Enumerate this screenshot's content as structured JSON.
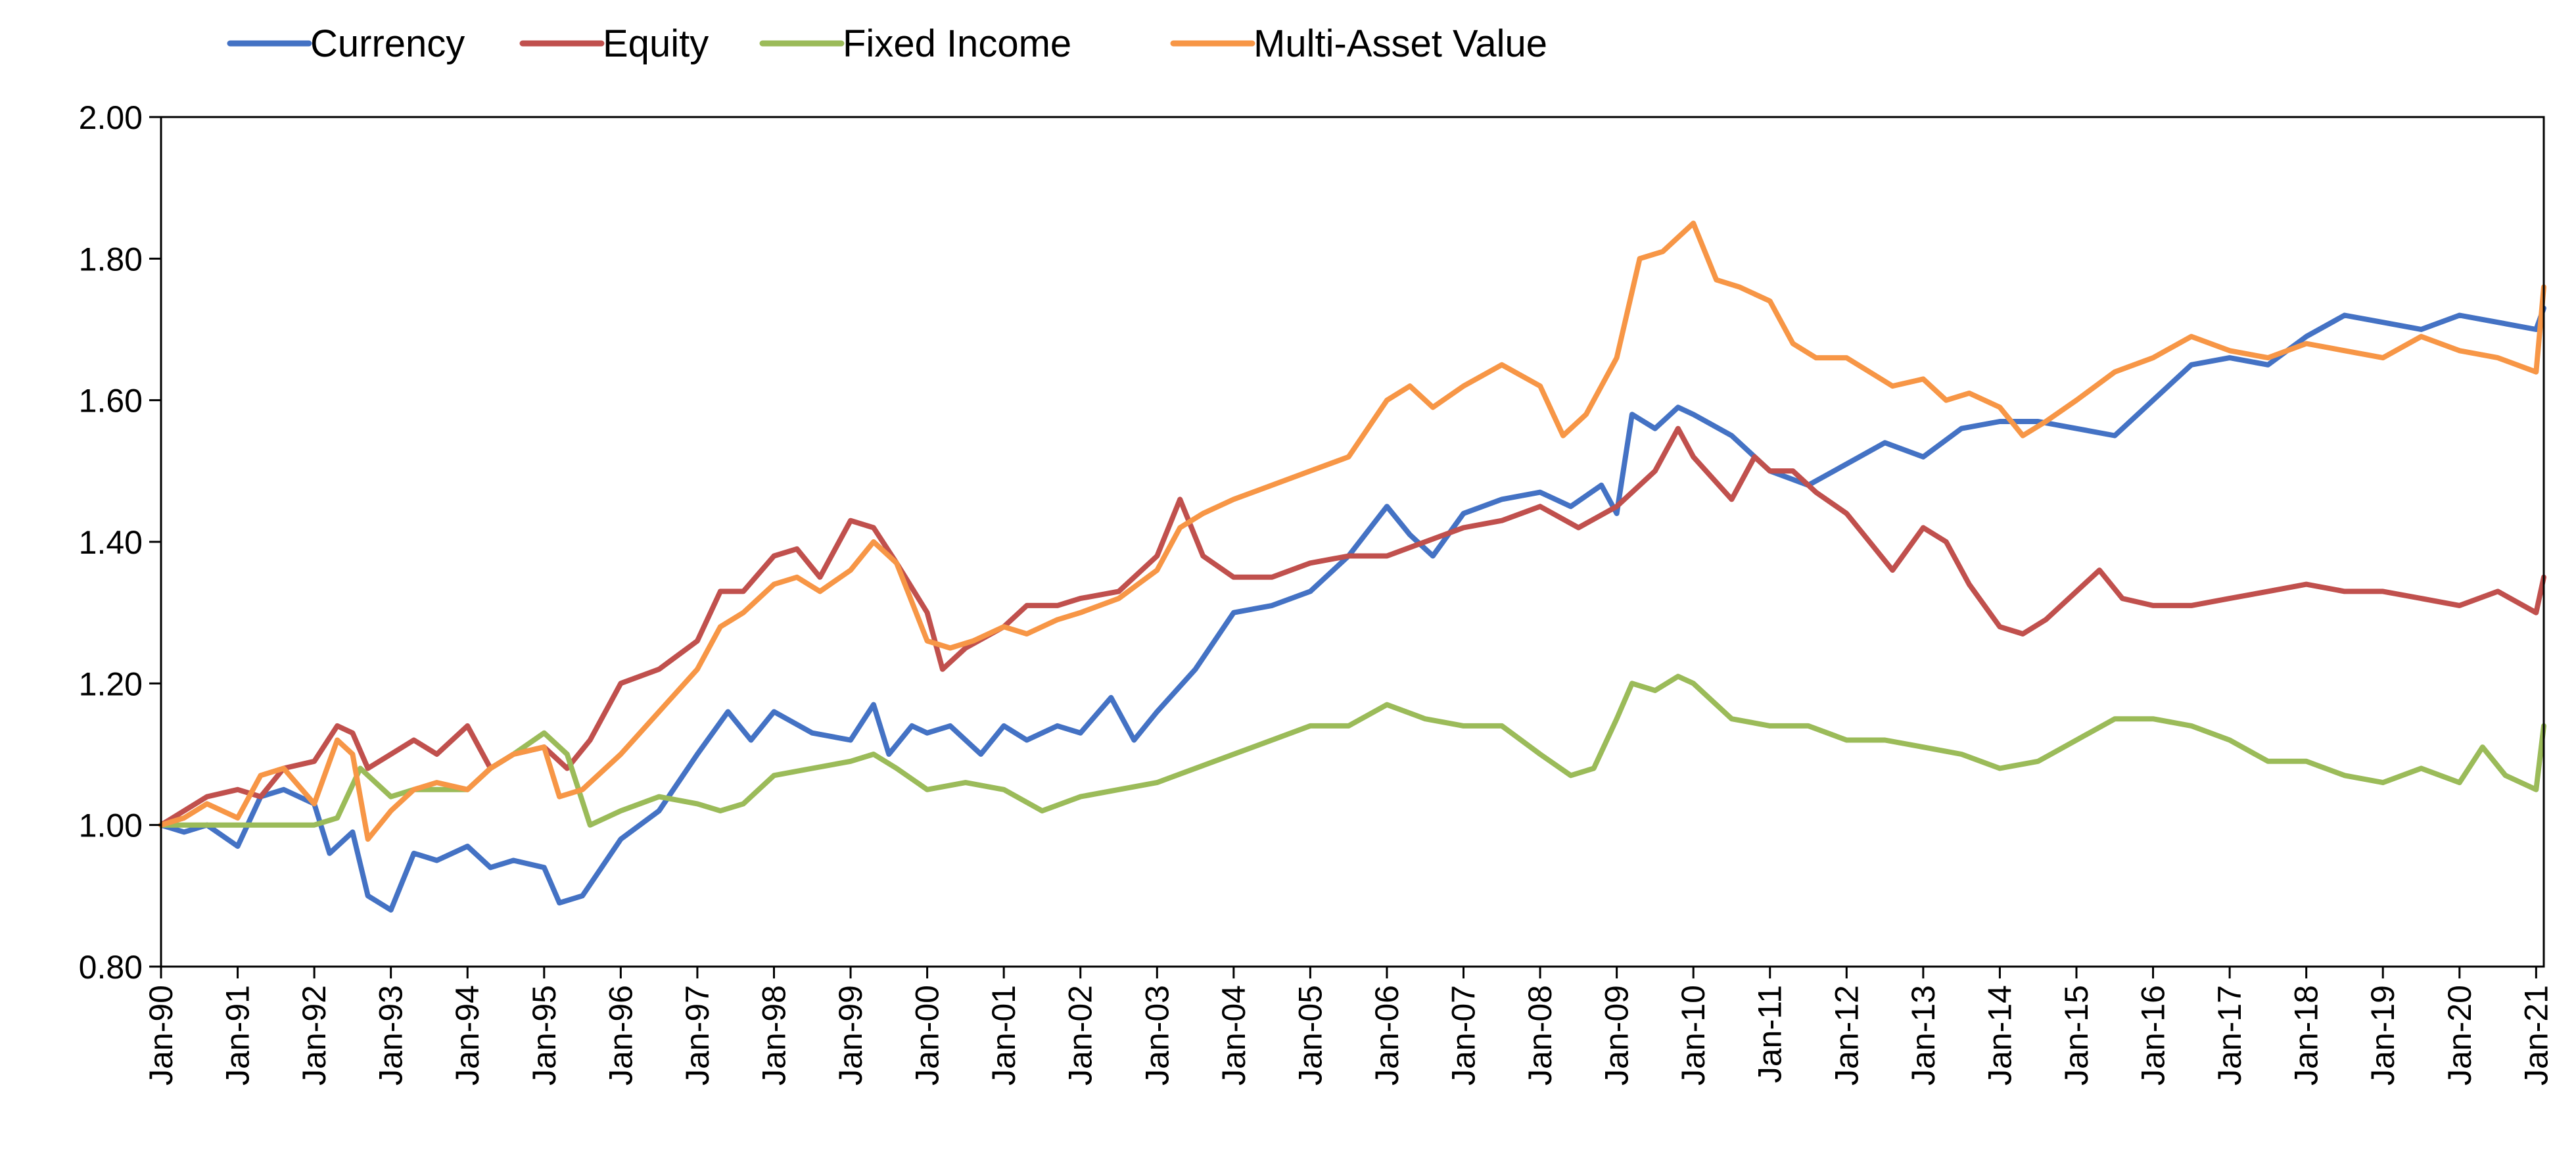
{
  "chart_data": {
    "type": "line",
    "title": "",
    "xlabel": "",
    "ylabel": "",
    "ylim": [
      0.8,
      2.0
    ],
    "yticks": [
      "0.80",
      "1.00",
      "1.20",
      "1.40",
      "1.60",
      "1.80",
      "2.00"
    ],
    "xlim": [
      1990.0,
      2021.1
    ],
    "xticks": [
      "Jan-90",
      "Jan-91",
      "Jan-92",
      "Jan-93",
      "Jan-94",
      "Jan-95",
      "Jan-96",
      "Jan-97",
      "Jan-98",
      "Jan-99",
      "Jan-00",
      "Jan-01",
      "Jan-02",
      "Jan-03",
      "Jan-04",
      "Jan-05",
      "Jan-06",
      "Jan-07",
      "Jan-08",
      "Jan-09",
      "Jan-10",
      "Jan-11",
      "Jan-12",
      "Jan-13",
      "Jan-14",
      "Jan-15",
      "Jan-16",
      "Jan-17",
      "Jan-18",
      "Jan-19",
      "Jan-20",
      "Jan-21"
    ],
    "legend_position": "top-left, above plot",
    "series": [
      {
        "name": "Currency",
        "color": "#4472C4",
        "x": [
          1990.0,
          1990.3,
          1990.6,
          1991.0,
          1991.3,
          1991.6,
          1992.0,
          1992.2,
          1992.5,
          1992.7,
          1993.0,
          1993.3,
          1993.6,
          1994.0,
          1994.3,
          1994.6,
          1995.0,
          1995.2,
          1995.5,
          1996.0,
          1996.5,
          1997.0,
          1997.4,
          1997.7,
          1998.0,
          1998.5,
          1999.0,
          1999.3,
          1999.5,
          1999.8,
          2000.0,
          2000.3,
          2000.7,
          2001.0,
          2001.3,
          2001.7,
          2002.0,
          2002.4,
          2002.7,
          2003.0,
          2003.5,
          2004.0,
          2004.5,
          2005.0,
          2005.5,
          2006.0,
          2006.3,
          2006.6,
          2007.0,
          2007.5,
          2008.0,
          2008.4,
          2008.8,
          2009.0,
          2009.2,
          2009.5,
          2009.8,
          2010.0,
          2010.5,
          2011.0,
          2011.5,
          2012.0,
          2012.5,
          2013.0,
          2013.5,
          2014.0,
          2014.5,
          2015.0,
          2015.5,
          2016.0,
          2016.5,
          2017.0,
          2017.5,
          2018.0,
          2018.5,
          2019.0,
          2019.5,
          2020.0,
          2020.5,
          2021.0,
          2021.1
        ],
        "values": [
          1.0,
          0.99,
          1.0,
          0.97,
          1.04,
          1.05,
          1.03,
          0.96,
          0.99,
          0.9,
          0.88,
          0.96,
          0.95,
          0.97,
          0.94,
          0.95,
          0.94,
          0.89,
          0.9,
          0.98,
          1.02,
          1.1,
          1.16,
          1.12,
          1.16,
          1.13,
          1.12,
          1.17,
          1.1,
          1.14,
          1.13,
          1.14,
          1.1,
          1.14,
          1.12,
          1.14,
          1.13,
          1.18,
          1.12,
          1.16,
          1.22,
          1.3,
          1.31,
          1.33,
          1.38,
          1.45,
          1.41,
          1.38,
          1.44,
          1.46,
          1.47,
          1.45,
          1.48,
          1.44,
          1.58,
          1.56,
          1.59,
          1.58,
          1.55,
          1.5,
          1.48,
          1.51,
          1.54,
          1.52,
          1.56,
          1.57,
          1.57,
          1.56,
          1.55,
          1.6,
          1.65,
          1.66,
          1.65,
          1.69,
          1.72,
          1.71,
          1.7,
          1.72,
          1.71,
          1.7,
          1.73
        ]
      },
      {
        "name": "Equity",
        "color": "#C0504D",
        "x": [
          1990.0,
          1990.3,
          1990.6,
          1991.0,
          1991.3,
          1991.6,
          1992.0,
          1992.3,
          1992.5,
          1992.7,
          1993.0,
          1993.3,
          1993.6,
          1994.0,
          1994.3,
          1994.6,
          1995.0,
          1995.3,
          1995.6,
          1996.0,
          1996.5,
          1997.0,
          1997.3,
          1997.6,
          1998.0,
          1998.3,
          1998.6,
          1999.0,
          1999.3,
          1999.6,
          2000.0,
          2000.2,
          2000.5,
          2001.0,
          2001.3,
          2001.7,
          2002.0,
          2002.5,
          2003.0,
          2003.3,
          2003.6,
          2004.0,
          2004.5,
          2005.0,
          2005.5,
          2006.0,
          2006.5,
          2007.0,
          2007.5,
          2008.0,
          2008.5,
          2009.0,
          2009.5,
          2009.8,
          2010.0,
          2010.5,
          2010.8,
          2011.0,
          2011.3,
          2011.6,
          2012.0,
          2012.3,
          2012.6,
          2013.0,
          2013.3,
          2013.6,
          2014.0,
          2014.3,
          2014.6,
          2015.0,
          2015.3,
          2015.6,
          2016.0,
          2016.5,
          2017.0,
          2017.5,
          2018.0,
          2018.5,
          2019.0,
          2019.5,
          2020.0,
          2020.5,
          2021.0,
          2021.1
        ],
        "values": [
          1.0,
          1.02,
          1.04,
          1.05,
          1.04,
          1.08,
          1.09,
          1.14,
          1.13,
          1.08,
          1.1,
          1.12,
          1.1,
          1.14,
          1.08,
          1.1,
          1.11,
          1.08,
          1.12,
          1.2,
          1.22,
          1.26,
          1.33,
          1.33,
          1.38,
          1.39,
          1.35,
          1.43,
          1.42,
          1.37,
          1.3,
          1.22,
          1.25,
          1.28,
          1.31,
          1.31,
          1.32,
          1.33,
          1.38,
          1.46,
          1.38,
          1.35,
          1.35,
          1.37,
          1.38,
          1.38,
          1.4,
          1.42,
          1.43,
          1.45,
          1.42,
          1.45,
          1.5,
          1.56,
          1.52,
          1.46,
          1.52,
          1.5,
          1.5,
          1.47,
          1.44,
          1.4,
          1.36,
          1.42,
          1.4,
          1.34,
          1.28,
          1.27,
          1.29,
          1.33,
          1.36,
          1.32,
          1.31,
          1.31,
          1.32,
          1.33,
          1.34,
          1.33,
          1.33,
          1.32,
          1.31,
          1.33,
          1.3,
          1.35
        ]
      },
      {
        "name": "Fixed Income",
        "color": "#9BBB59",
        "x": [
          1990.0,
          1990.5,
          1991.0,
          1991.5,
          1992.0,
          1992.3,
          1992.6,
          1993.0,
          1993.3,
          1993.6,
          1994.0,
          1994.3,
          1994.6,
          1995.0,
          1995.3,
          1995.6,
          1996.0,
          1996.5,
          1997.0,
          1997.3,
          1997.6,
          1998.0,
          1998.5,
          1999.0,
          1999.3,
          1999.6,
          2000.0,
          2000.5,
          2001.0,
          2001.5,
          2002.0,
          2002.5,
          2003.0,
          2003.5,
          2004.0,
          2004.5,
          2005.0,
          2005.5,
          2006.0,
          2006.5,
          2007.0,
          2007.5,
          2008.0,
          2008.4,
          2008.7,
          2009.0,
          2009.2,
          2009.5,
          2009.8,
          2010.0,
          2010.5,
          2011.0,
          2011.5,
          2012.0,
          2012.5,
          2013.0,
          2013.5,
          2014.0,
          2014.5,
          2015.0,
          2015.5,
          2016.0,
          2016.5,
          2017.0,
          2017.5,
          2018.0,
          2018.5,
          2019.0,
          2019.5,
          2020.0,
          2020.3,
          2020.6,
          2021.0,
          2021.1
        ],
        "values": [
          1.0,
          1.0,
          1.0,
          1.0,
          1.0,
          1.01,
          1.08,
          1.04,
          1.05,
          1.05,
          1.05,
          1.08,
          1.1,
          1.13,
          1.1,
          1.0,
          1.02,
          1.04,
          1.03,
          1.02,
          1.03,
          1.07,
          1.08,
          1.09,
          1.1,
          1.08,
          1.05,
          1.06,
          1.05,
          1.02,
          1.04,
          1.05,
          1.06,
          1.08,
          1.1,
          1.12,
          1.14,
          1.14,
          1.17,
          1.15,
          1.14,
          1.14,
          1.1,
          1.07,
          1.08,
          1.15,
          1.2,
          1.19,
          1.21,
          1.2,
          1.15,
          1.14,
          1.14,
          1.12,
          1.12,
          1.11,
          1.1,
          1.08,
          1.09,
          1.12,
          1.15,
          1.15,
          1.14,
          1.12,
          1.09,
          1.09,
          1.07,
          1.06,
          1.08,
          1.06,
          1.11,
          1.07,
          1.05,
          1.14
        ]
      },
      {
        "name": "Multi-Asset Value",
        "color": "#F79646",
        "x": [
          1990.0,
          1990.3,
          1990.6,
          1991.0,
          1991.3,
          1991.6,
          1992.0,
          1992.3,
          1992.5,
          1992.7,
          1993.0,
          1993.3,
          1993.6,
          1994.0,
          1994.3,
          1994.6,
          1995.0,
          1995.2,
          1995.5,
          1996.0,
          1996.5,
          1997.0,
          1997.3,
          1997.6,
          1998.0,
          1998.3,
          1998.6,
          1999.0,
          1999.3,
          1999.6,
          2000.0,
          2000.3,
          2000.6,
          2001.0,
          2001.3,
          2001.7,
          2002.0,
          2002.5,
          2003.0,
          2003.3,
          2003.6,
          2004.0,
          2004.5,
          2005.0,
          2005.5,
          2006.0,
          2006.3,
          2006.6,
          2007.0,
          2007.5,
          2008.0,
          2008.3,
          2008.6,
          2009.0,
          2009.3,
          2009.6,
          2009.9,
          2010.0,
          2010.3,
          2010.6,
          2011.0,
          2011.3,
          2011.6,
          2012.0,
          2012.3,
          2012.6,
          2013.0,
          2013.3,
          2013.6,
          2014.0,
          2014.3,
          2014.6,
          2015.0,
          2015.5,
          2016.0,
          2016.5,
          2017.0,
          2017.5,
          2018.0,
          2018.5,
          2019.0,
          2019.5,
          2020.0,
          2020.5,
          2021.0,
          2021.1
        ],
        "values": [
          1.0,
          1.01,
          1.03,
          1.01,
          1.07,
          1.08,
          1.03,
          1.12,
          1.1,
          0.98,
          1.02,
          1.05,
          1.06,
          1.05,
          1.08,
          1.1,
          1.11,
          1.04,
          1.05,
          1.1,
          1.16,
          1.22,
          1.28,
          1.3,
          1.34,
          1.35,
          1.33,
          1.36,
          1.4,
          1.37,
          1.26,
          1.25,
          1.26,
          1.28,
          1.27,
          1.29,
          1.3,
          1.32,
          1.36,
          1.42,
          1.44,
          1.46,
          1.48,
          1.5,
          1.52,
          1.6,
          1.62,
          1.59,
          1.62,
          1.65,
          1.62,
          1.55,
          1.58,
          1.66,
          1.8,
          1.81,
          1.84,
          1.85,
          1.77,
          1.76,
          1.74,
          1.68,
          1.66,
          1.66,
          1.64,
          1.62,
          1.63,
          1.6,
          1.61,
          1.59,
          1.55,
          1.57,
          1.6,
          1.64,
          1.66,
          1.69,
          1.67,
          1.66,
          1.68,
          1.67,
          1.66,
          1.69,
          1.67,
          1.66,
          1.64,
          1.76
        ]
      }
    ]
  }
}
